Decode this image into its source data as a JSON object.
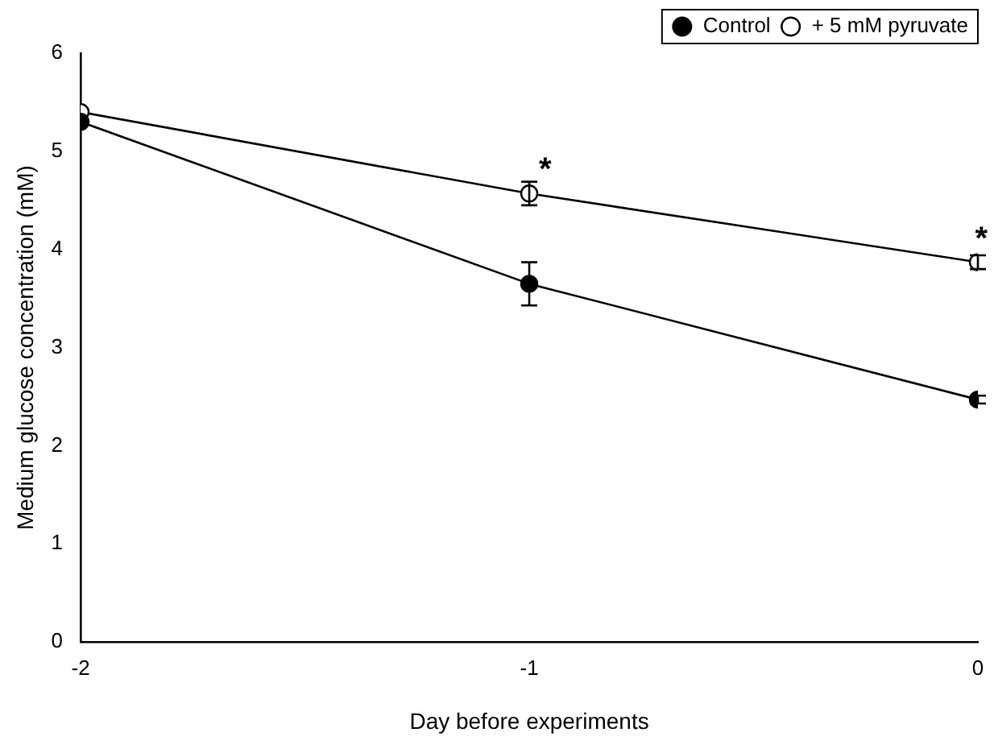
{
  "chart_data": {
    "type": "line",
    "xlabel": "Day before experiments",
    "ylabel": "Medium glucose concentration (mM)",
    "xlim": [
      -2,
      0
    ],
    "xticks": [
      -2,
      -1,
      0
    ],
    "ylim": [
      0,
      6
    ],
    "yticks": [
      0,
      1,
      2,
      3,
      4,
      5,
      6
    ],
    "legend": "top right",
    "marker": "circle",
    "line_style": "solid",
    "grid": false,
    "annotations": [
      {
        "text": "*",
        "x": -1,
        "y": 4.57
      },
      {
        "text": "*",
        "x": 0,
        "y": 3.87
      }
    ],
    "series": [
      {
        "name": "Control",
        "color": "#000000",
        "x": [
          -2,
          -1,
          0
        ],
        "values": [
          5.3,
          3.65,
          2.47
        ],
        "errors": [
          null,
          0.22,
          0.04
        ]
      },
      {
        "name": "+ 5 mM pyruvate",
        "color": "#ffffff",
        "x": [
          -2,
          -1,
          0
        ],
        "values": [
          5.4,
          4.57,
          3.87
        ],
        "errors": [
          null,
          0.12,
          0.07
        ]
      }
    ]
  }
}
